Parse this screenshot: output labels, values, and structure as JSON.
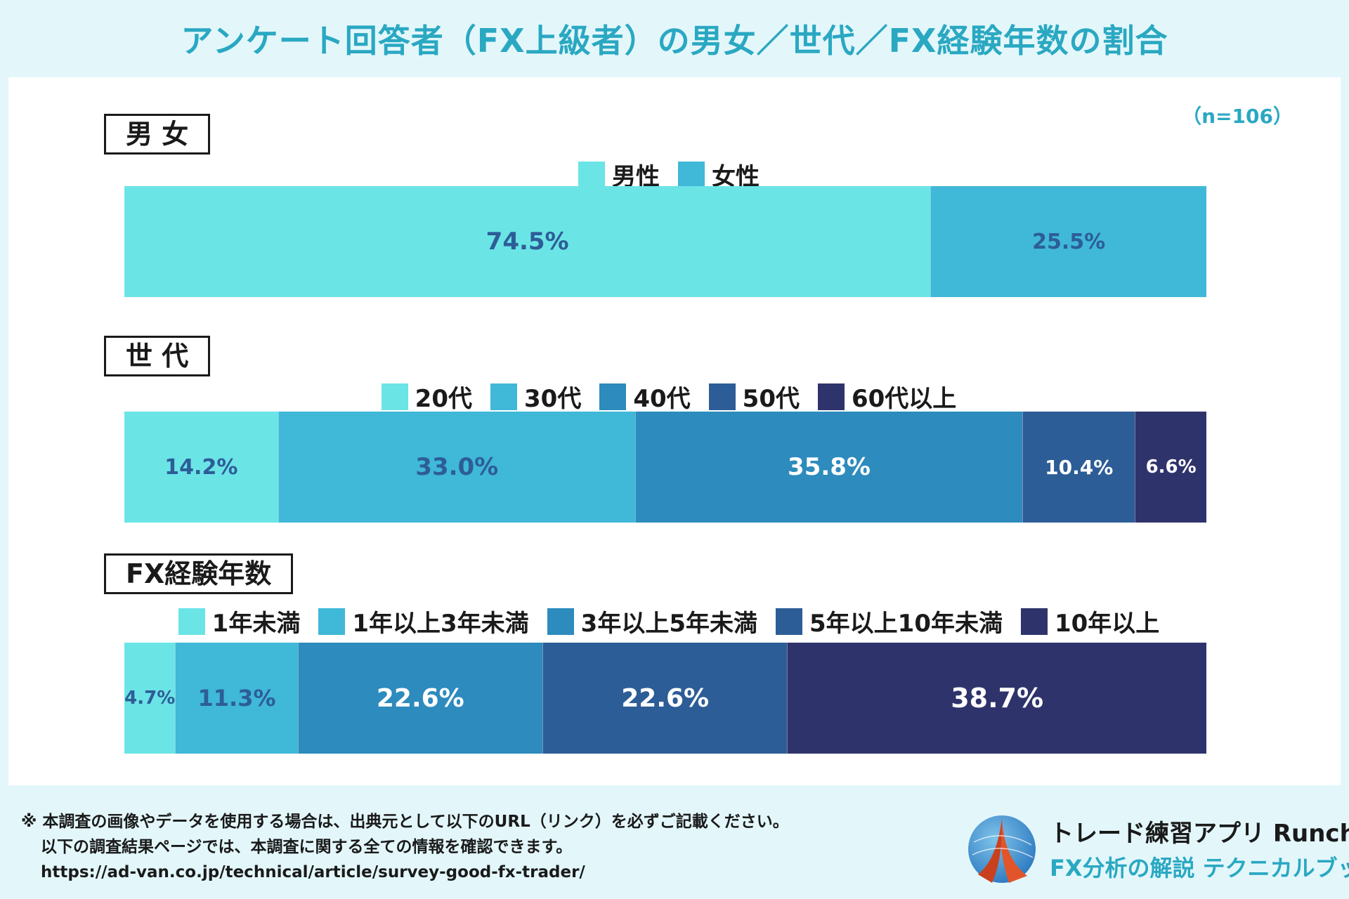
{
  "title": "アンケート回答者（FX上級者）の男女／世代／FX経験年数の割合",
  "sample_size": "（n=106）",
  "colors": {
    "title": "#2aa8c2",
    "c1": "#6be4e6",
    "c2": "#40b8d8",
    "c3": "#2d8bbd",
    "c4": "#2d5d97",
    "c5": "#2f336b",
    "label_dark": "#2d5d97",
    "label_light": "#ffffff"
  },
  "chart_data": [
    {
      "type": "bar",
      "stacked": true,
      "orientation": "horizontal",
      "title": "男 女",
      "unit": "%",
      "series": [
        {
          "name": "男性",
          "values": [
            74.5
          ],
          "label": "74.5%"
        },
        {
          "name": "女性",
          "values": [
            25.5
          ],
          "label": "25.5%"
        }
      ]
    },
    {
      "type": "bar",
      "stacked": true,
      "orientation": "horizontal",
      "title": "世 代",
      "unit": "%",
      "series": [
        {
          "name": "20代",
          "values": [
            14.2
          ],
          "label": "14.2%"
        },
        {
          "name": "30代",
          "values": [
            33.0
          ],
          "label": "33.0%"
        },
        {
          "name": "40代",
          "values": [
            35.8
          ],
          "label": "35.8%"
        },
        {
          "name": "50代",
          "values": [
            10.4
          ],
          "label": "10.4%"
        },
        {
          "name": "60代以上",
          "values": [
            6.6
          ],
          "label": "6.6%"
        }
      ]
    },
    {
      "type": "bar",
      "stacked": true,
      "orientation": "horizontal",
      "title": "FX経験年数",
      "unit": "%",
      "series": [
        {
          "name": "1年未満",
          "values": [
            4.7
          ],
          "label": "4.7%"
        },
        {
          "name": "1年以上3年未満",
          "values": [
            11.3
          ],
          "label": "11.3%"
        },
        {
          "name": "3年以上5年未満",
          "values": [
            22.6
          ],
          "label": "22.6%"
        },
        {
          "name": "5年以上10年未満",
          "values": [
            22.6
          ],
          "label": "22.6%"
        },
        {
          "name": "10年以上",
          "values": [
            38.7
          ],
          "label": "38.7%"
        }
      ]
    }
  ],
  "footer": {
    "line1": "※ 本調査の画像やデータを使用する場合は、出典元として以下のURL（リンク）を必ずご記載ください。",
    "line2": "以下の調査結果ページでは、本調査に関する全ての情報を確認できます。",
    "url": "https://ad-van.co.jp/technical/article/survey-good-fx-trader/"
  },
  "brand": {
    "name": "トレード練習アプリ Runcha",
    "subtitle": "FX分析の解説 テクニカルブック",
    "logo_icon": "runcha-logo-icon"
  }
}
